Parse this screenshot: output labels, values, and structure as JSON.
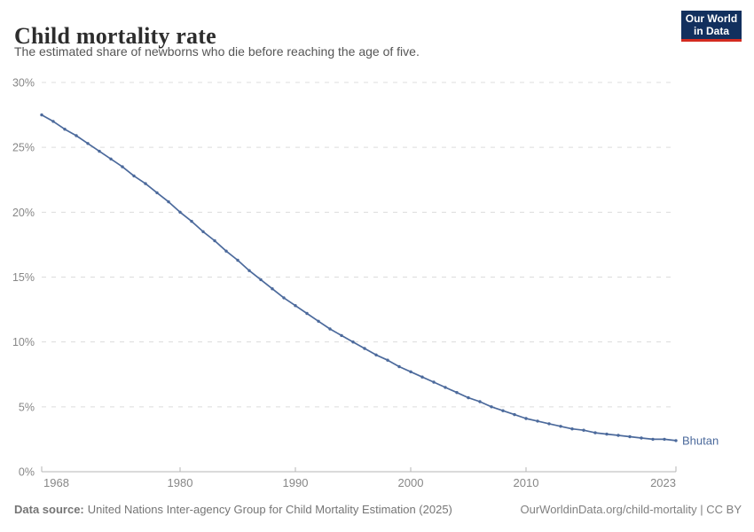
{
  "header": {
    "title": "Child mortality rate",
    "subtitle": "The estimated share of newborns who die before reaching the age of five."
  },
  "logo": {
    "line1": "Our World",
    "line2": "in Data",
    "bg_color": "#12305e",
    "accent_color": "#d42b20"
  },
  "chart_data": {
    "type": "line",
    "title": "Child mortality rate",
    "unit": "%",
    "xlim": [
      1968,
      2023
    ],
    "ylim": [
      0,
      30
    ],
    "yticks": [
      0,
      5,
      10,
      15,
      20,
      25,
      30
    ],
    "xticks": [
      1968,
      1980,
      1990,
      2000,
      2010,
      2023
    ],
    "grid": "dashed-horizontal",
    "legend_position": "end-of-line",
    "grid_color": "#dcdcdc",
    "axis_color": "#b5b5b5",
    "tick_label_color": "#878787",
    "series": [
      {
        "name": "Bhutan",
        "color": "#4c6a9c",
        "x": [
          1968,
          1969,
          1970,
          1971,
          1972,
          1973,
          1974,
          1975,
          1976,
          1977,
          1978,
          1979,
          1980,
          1981,
          1982,
          1983,
          1984,
          1985,
          1986,
          1987,
          1988,
          1989,
          1990,
          1991,
          1992,
          1993,
          1994,
          1995,
          1996,
          1997,
          1998,
          1999,
          2000,
          2001,
          2002,
          2003,
          2004,
          2005,
          2006,
          2007,
          2008,
          2009,
          2010,
          2011,
          2012,
          2013,
          2014,
          2015,
          2016,
          2017,
          2018,
          2019,
          2020,
          2021,
          2022,
          2023
        ],
        "values": [
          27.5,
          27.0,
          26.4,
          25.9,
          25.3,
          24.7,
          24.1,
          23.5,
          22.8,
          22.2,
          21.5,
          20.8,
          20.0,
          19.3,
          18.5,
          17.8,
          17.0,
          16.3,
          15.5,
          14.8,
          14.1,
          13.4,
          12.8,
          12.2,
          11.6,
          11.0,
          10.5,
          10.0,
          9.5,
          9.0,
          8.6,
          8.1,
          7.7,
          7.3,
          6.9,
          6.5,
          6.1,
          5.7,
          5.4,
          5.0,
          4.7,
          4.4,
          4.1,
          3.9,
          3.7,
          3.5,
          3.3,
          3.2,
          3.0,
          2.9,
          2.8,
          2.7,
          2.6,
          2.5,
          2.5,
          2.4
        ]
      }
    ]
  },
  "footer": {
    "source_label": "Data source:",
    "source_text": "United Nations Inter-agency Group for Child Mortality Estimation (2025)",
    "credit": "OurWorldinData.org/child-mortality | CC BY"
  }
}
